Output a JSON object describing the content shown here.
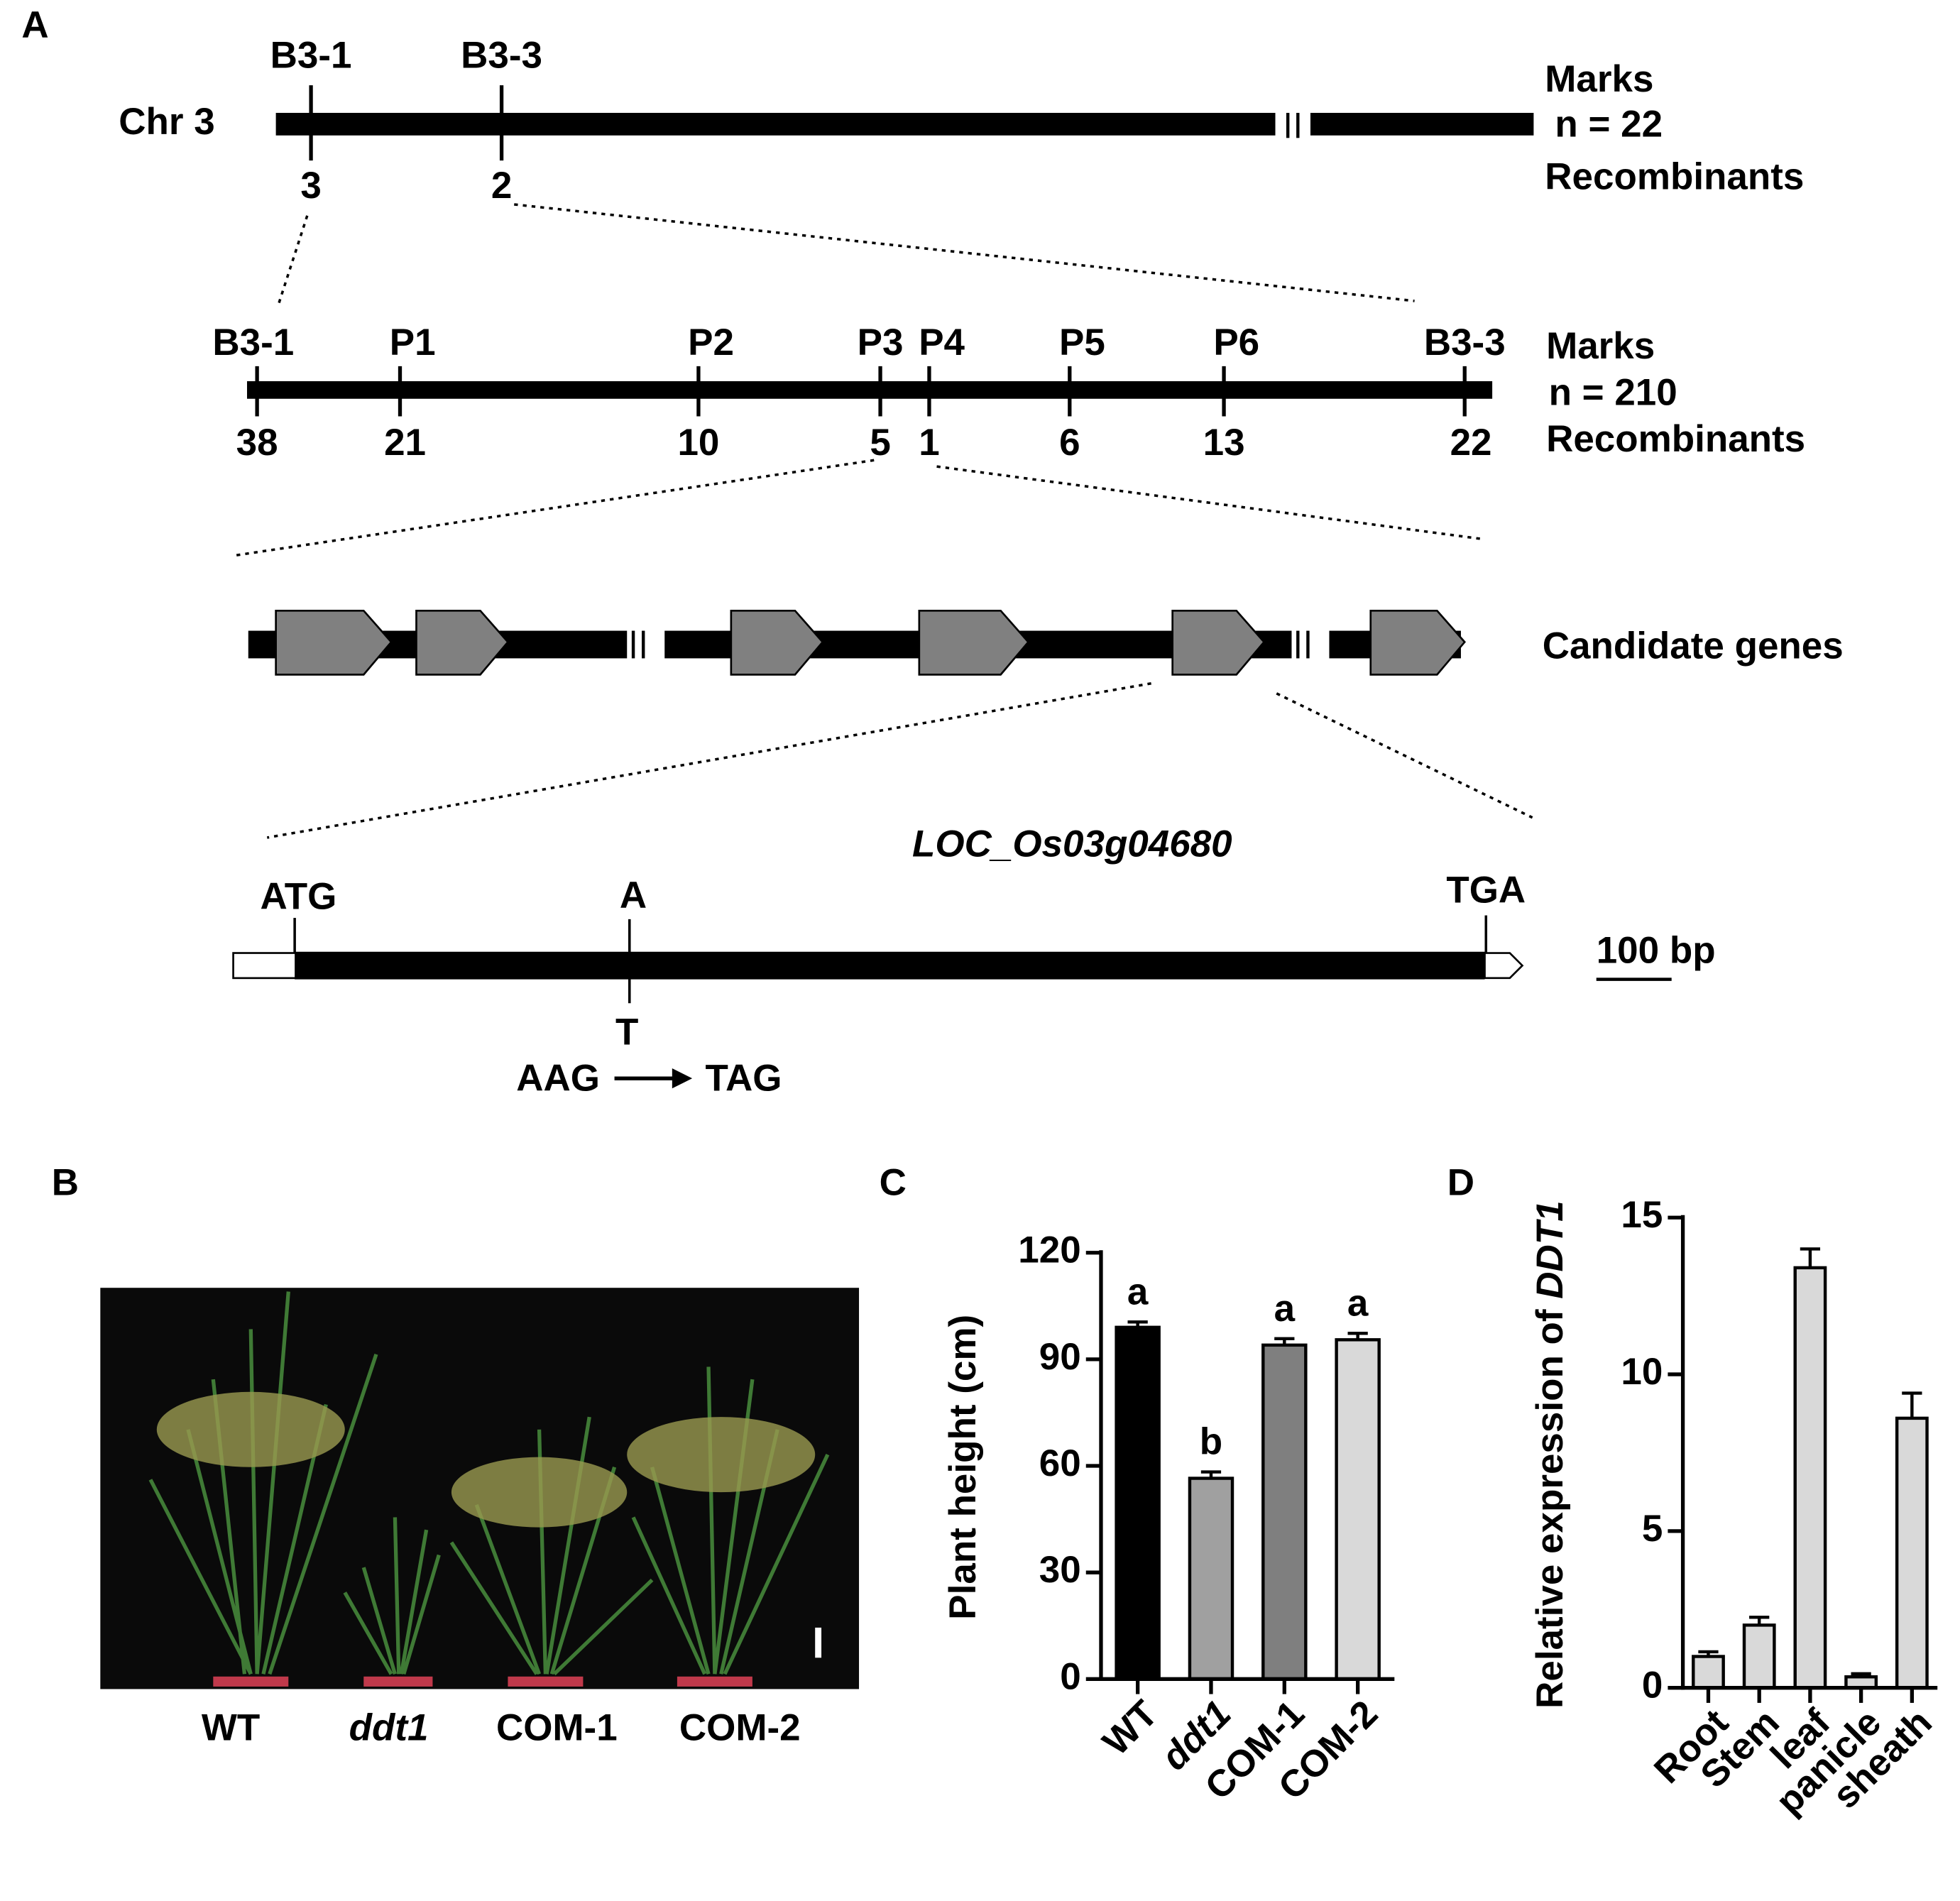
{
  "panel_labels": [
    "A",
    "B",
    "C",
    "D"
  ],
  "map": {
    "level1": {
      "chromosome": "Chr 3",
      "markers": [
        {
          "name": "B3-1",
          "count": 3
        },
        {
          "name": "B3-3",
          "count": 2
        }
      ],
      "side": [
        "Marks",
        "n = 22",
        "Recombinants"
      ]
    },
    "level2": {
      "markers": [
        {
          "name": "B3-1",
          "count": 38
        },
        {
          "name": "P1",
          "count": 21
        },
        {
          "name": "P2",
          "count": 10
        },
        {
          "name": "P3",
          "count": 5
        },
        {
          "name": "P4",
          "count": 1
        },
        {
          "name": "P5",
          "count": 6
        },
        {
          "name": "P6",
          "count": 13
        },
        {
          "name": "B3-3",
          "count": 22
        }
      ],
      "side": [
        "Marks",
        "n = 210",
        "Recombinants"
      ]
    },
    "candidate_label": "Candidate genes",
    "gene": {
      "name": "LOC_Os03g04680",
      "start": "ATG",
      "stop": "TGA",
      "wild_base": "A",
      "mutant_base": "T",
      "codon_from": "AAG",
      "codon_to": "TAG",
      "scale": "100 bp"
    }
  },
  "photo_labels": [
    "WT",
    "ddt1",
    "COM-1",
    "COM-2"
  ],
  "chart_data": [
    {
      "type": "bar",
      "y_label": "Plant height (cm)",
      "categories": [
        "WT",
        "ddt1",
        "COM-1",
        "COM-2"
      ],
      "values": [
        99,
        56.5,
        94,
        95.5
      ],
      "errors": [
        1.5,
        1.8,
        1.8,
        1.8
      ],
      "letters": [
        "a",
        "b",
        "a",
        "a"
      ],
      "colors": [
        "#000000",
        "#a0a0a0",
        "#7f7f7f",
        "#d9d9d9"
      ],
      "ylim": [
        0,
        120
      ],
      "yticks": [
        0,
        30,
        60,
        90,
        120
      ]
    },
    {
      "type": "bar",
      "y_label": "Relative expression of",
      "y_label_gene": "DDT1",
      "categories": [
        "Root",
        "Stem",
        "leaf",
        "panicle",
        "sheath"
      ],
      "values": [
        1.0,
        2.0,
        13.4,
        0.35,
        8.6
      ],
      "errors": [
        0.15,
        0.25,
        0.6,
        0.1,
        0.8
      ],
      "colors": [
        "#d9d9d9",
        "#d9d9d9",
        "#d9d9d9",
        "#d9d9d9",
        "#d9d9d9"
      ],
      "ylim": [
        0,
        15
      ],
      "yticks": [
        0,
        5,
        10,
        15
      ]
    }
  ]
}
